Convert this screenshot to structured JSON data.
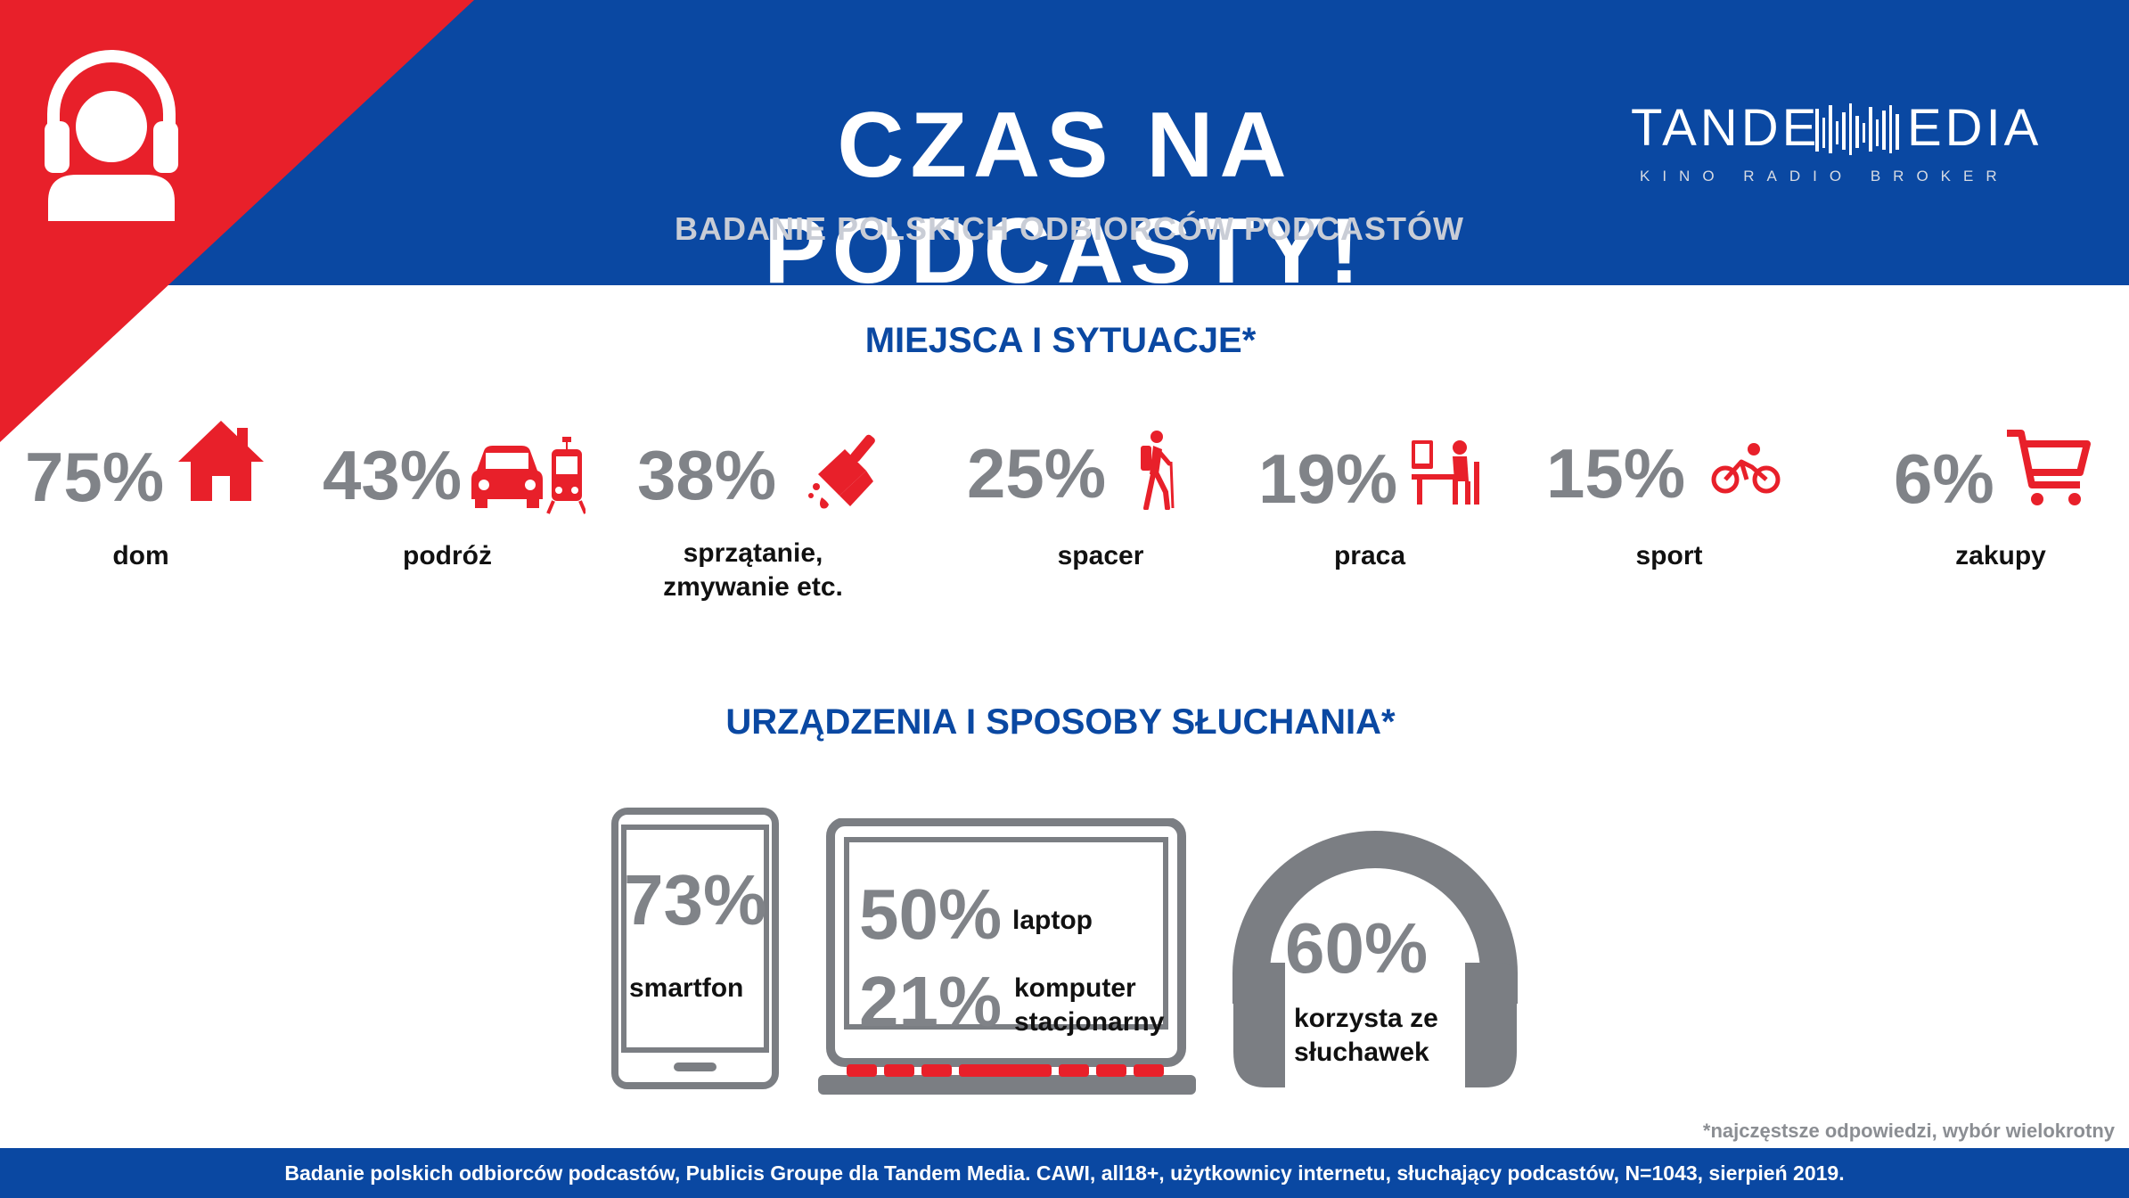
{
  "header": {
    "title": "CZAS NA PODCASTY!",
    "subtitle": "BADANIE POLSKICH ODBIORCÓW PODCASTÓW",
    "logo": {
      "left": "TANDE",
      "right": "EDIA",
      "tagline": "KINO RADIO BROKER"
    }
  },
  "colors": {
    "blue": "#0a48a2",
    "red": "#e8202a",
    "gray": "#808388",
    "dark": "#111111"
  },
  "sections": {
    "places_title": "MIEJSCA I SYTUACJE*",
    "devices_title": "URZĄDZENIA I SPOSOBY SŁUCHANIA*"
  },
  "chart_data": [
    {
      "type": "table",
      "title": "MIEJSCA I SYTUACJE*",
      "categories": [
        "dom",
        "podróż",
        "sprzątanie, zmywanie etc.",
        "spacer",
        "praca",
        "sport",
        "zakupy"
      ],
      "values": [
        75,
        43,
        38,
        25,
        19,
        15,
        6
      ],
      "value_labels": [
        "75%",
        "43%",
        "38%",
        "25%",
        "19%",
        "15%",
        "6%"
      ],
      "icons": [
        "house-icon",
        "car-and-tram-icon",
        "cleaning-brush-icon",
        "hiker-icon",
        "desk-worker-icon",
        "cyclist-icon",
        "shopping-cart-icon"
      ]
    },
    {
      "type": "table",
      "title": "URZĄDZENIA I SPOSOBY SŁUCHANIA*",
      "categories": [
        "smartfon",
        "laptop",
        "komputer stacjonarny",
        "korzysta ze słuchawek"
      ],
      "values": [
        73,
        50,
        21,
        60
      ],
      "value_labels": [
        "73%",
        "50%",
        "21%",
        "60%"
      ],
      "icons": [
        "smartphone-icon",
        "laptop-icon",
        "laptop-icon",
        "headphones-icon"
      ]
    }
  ],
  "places": [
    {
      "pct": "75%",
      "label_lines": [
        "dom"
      ]
    },
    {
      "pct": "43%",
      "label_lines": [
        "podróż"
      ]
    },
    {
      "pct": "38%",
      "label_lines": [
        "sprzątanie,",
        "zmywanie etc."
      ]
    },
    {
      "pct": "25%",
      "label_lines": [
        "spacer"
      ]
    },
    {
      "pct": "19%",
      "label_lines": [
        "praca"
      ]
    },
    {
      "pct": "15%",
      "label_lines": [
        "sport"
      ]
    },
    {
      "pct": "6%",
      "label_lines": [
        "zakupy"
      ]
    }
  ],
  "devices": {
    "smartphone": {
      "pct": "73%",
      "label": "smartfon"
    },
    "laptop": {
      "pct": "50%",
      "label": "laptop"
    },
    "desktop": {
      "pct": "21%",
      "label_lines": [
        "komputer",
        "stacjonarny"
      ]
    },
    "headphones": {
      "pct": "60%",
      "label_lines": [
        "korzysta ze",
        "słuchawek"
      ]
    }
  },
  "footnote": "*najczęstsze odpowiedzi, wybór wielokrotny",
  "footer": "Badanie polskich odbiorców podcastów, Publicis Groupe dla Tandem Media.  CAWI, all18+, użytkownicy internetu, słuchający podcastów, N=1043, sierpień 2019."
}
